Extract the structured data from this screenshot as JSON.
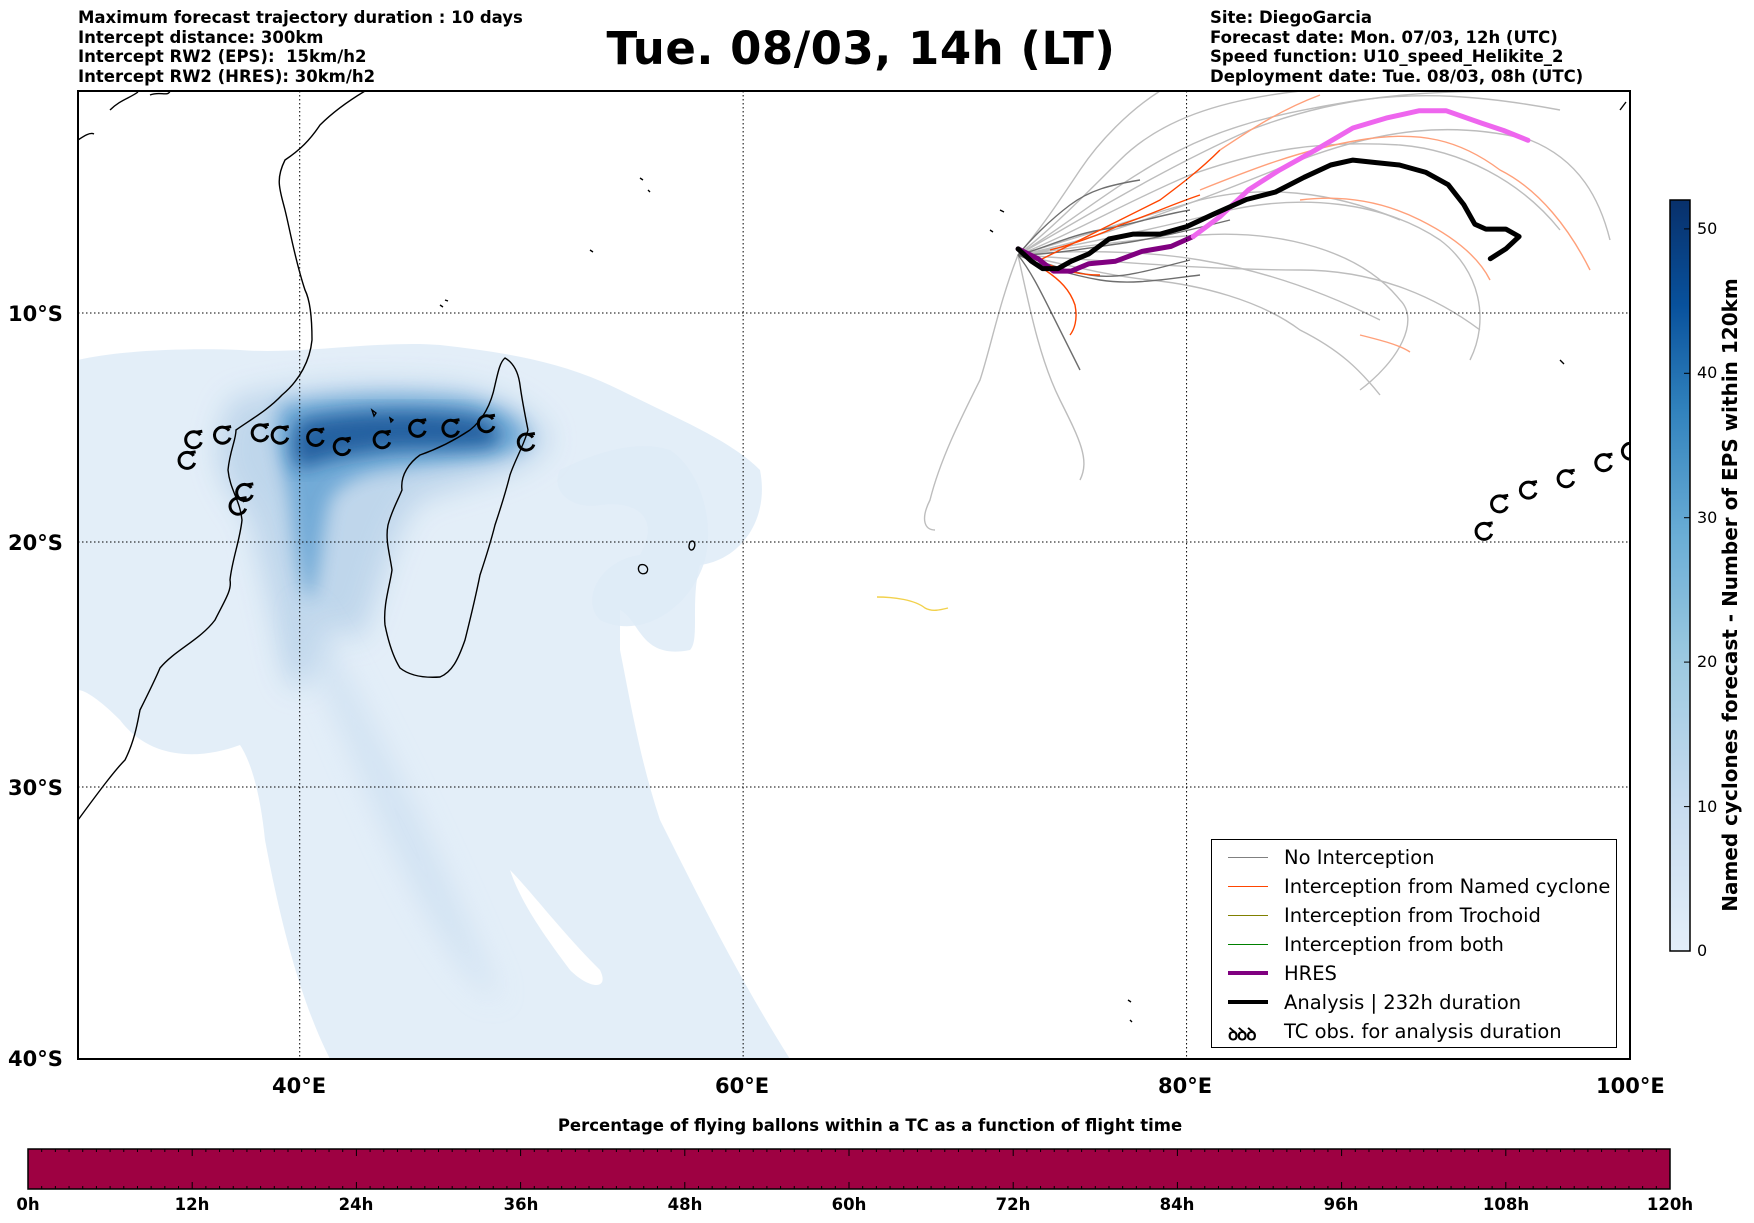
{
  "header_left": [
    "Maximum forecast trajectory duration : 10 days",
    "Intercept distance: 300km",
    "Intercept RW2 (EPS):  15km/h2",
    "Intercept RW2 (HRES): 30km/h2"
  ],
  "title": "Tue. 08/03, 14h (LT)",
  "header_right": [
    "Site: DiegoGarcia",
    "Forecast date: Mon. 07/03, 12h (UTC)",
    "Speed function: U10_speed_Helikite_2",
    "Deployment date: Tue. 08/03, 08h (UTC)"
  ],
  "map": {
    "lon_range": [
      30,
      100
    ],
    "lat_range": [
      -40,
      -1
    ],
    "lon_ticks": [
      {
        "value": 40,
        "label": "40°E"
      },
      {
        "value": 60,
        "label": "60°E"
      },
      {
        "value": 80,
        "label": "80°E"
      },
      {
        "value": 100,
        "label": "100°E"
      }
    ],
    "lat_ticks": [
      {
        "value": -10,
        "label": "10°S"
      },
      {
        "value": -20,
        "label": "20°S"
      },
      {
        "value": -30,
        "label": "30°S"
      },
      {
        "value": -40,
        "label": "40°S"
      }
    ],
    "gridlines": "dotted"
  },
  "legend": {
    "items": [
      {
        "label": "No Interception",
        "color": "#808080",
        "style": "thin"
      },
      {
        "label": "Interception from Named cyclone",
        "color": "#ff4500",
        "style": "thin"
      },
      {
        "label": "Interception from Trochoid",
        "color": "#808000",
        "style": "thin"
      },
      {
        "label": "Interception from both",
        "color": "#008000",
        "style": "thin"
      },
      {
        "label": "HRES",
        "color": "#800080",
        "style": "thick"
      },
      {
        "label": "Analysis | 232h duration",
        "color": "#000000",
        "style": "thick"
      },
      {
        "label": "TC obs. for analysis duration",
        "icon": "cyclone-icon",
        "symbol": "ꝺꝺꝺ"
      }
    ]
  },
  "colorbar": {
    "label": "Named cyclones forecast - Number of EPS within 120km",
    "ticks": [
      0,
      10,
      20,
      30,
      40,
      50
    ],
    "range": [
      0,
      52
    ],
    "colors": [
      "#e3eef9",
      "#c6dbef",
      "#9ecae1",
      "#6baed6",
      "#3182bd",
      "#08519c",
      "#08306b"
    ]
  },
  "tc_obs_analysis": [
    [
      93.4,
      -19.6
    ],
    [
      94.1,
      -18.4
    ],
    [
      95.4,
      -17.8
    ],
    [
      97.1,
      -17.3
    ],
    [
      98.8,
      -16.6
    ],
    [
      100.0,
      -16.1
    ]
  ],
  "tc_obs_madagascar": [
    [
      34.9,
      -16.5
    ],
    [
      35.2,
      -15.6
    ],
    [
      36.5,
      -15.4
    ],
    [
      38.2,
      -15.3
    ],
    [
      39.1,
      -15.4
    ],
    [
      40.7,
      -15.5
    ],
    [
      41.9,
      -15.9
    ],
    [
      43.7,
      -15.6
    ],
    [
      45.3,
      -15.1
    ],
    [
      46.8,
      -15.1
    ],
    [
      48.4,
      -14.9
    ],
    [
      50.2,
      -15.7
    ],
    [
      37.5,
      -17.9
    ],
    [
      37.2,
      -18.5
    ]
  ],
  "analysis_track": [
    [
      72.4,
      -7.4
    ],
    [
      73.0,
      -7.9
    ],
    [
      73.5,
      -8.2
    ],
    [
      74.2,
      -8.2
    ],
    [
      74.8,
      -7.9
    ],
    [
      75.6,
      -7.6
    ],
    [
      76.5,
      -7.0
    ],
    [
      77.6,
      -6.8
    ],
    [
      78.8,
      -6.8
    ],
    [
      80.0,
      -6.5
    ],
    [
      81.2,
      -6.0
    ],
    [
      82.7,
      -5.4
    ],
    [
      84.0,
      -5.1
    ],
    [
      85.3,
      -4.5
    ],
    [
      86.5,
      -4.0
    ],
    [
      87.5,
      -3.8
    ],
    [
      88.5,
      -3.9
    ],
    [
      89.6,
      -4.0
    ],
    [
      90.8,
      -4.3
    ],
    [
      91.8,
      -4.8
    ],
    [
      92.5,
      -5.6
    ],
    [
      93.0,
      -6.4
    ],
    [
      93.5,
      -6.6
    ],
    [
      94.4,
      -6.6
    ],
    [
      95.0,
      -6.9
    ],
    [
      94.4,
      -7.4
    ],
    [
      93.7,
      -7.8
    ]
  ],
  "hres_track": [
    [
      72.4,
      -7.4
    ],
    [
      73.3,
      -7.8
    ],
    [
      74.0,
      -8.3
    ],
    [
      74.8,
      -8.3
    ],
    [
      75.6,
      -8.0
    ],
    [
      76.8,
      -7.9
    ],
    [
      78.0,
      -7.5
    ],
    [
      79.3,
      -7.3
    ],
    [
      80.3,
      -6.9
    ]
  ],
  "pink_track": [
    [
      80.3,
      -6.9
    ],
    [
      81.5,
      -6.1
    ],
    [
      82.8,
      -5.0
    ],
    [
      84.2,
      -4.2
    ],
    [
      85.8,
      -3.4
    ],
    [
      87.5,
      -2.5
    ],
    [
      89.0,
      -2.1
    ],
    [
      90.5,
      -1.8
    ],
    [
      91.7,
      -1.8
    ],
    [
      93.3,
      -2.3
    ],
    [
      94.3,
      -2.6
    ],
    [
      95.4,
      -3.0
    ]
  ],
  "bottom": {
    "title": "Percentage of flying ballons within a TC as a function of flight time",
    "ticks": [
      "0h",
      "12h",
      "24h",
      "36h",
      "48h",
      "60h",
      "72h",
      "84h",
      "96h",
      "108h",
      "120h"
    ],
    "bar_color": "#9e0142"
  }
}
